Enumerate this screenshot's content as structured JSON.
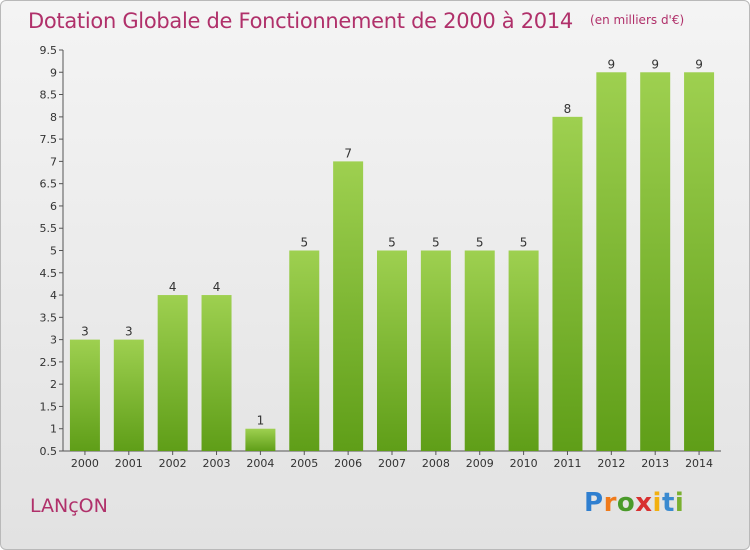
{
  "header": {
    "title": "Dotation Globale de Fonctionnement de 2000 à 2014",
    "unit_note": "(en milliers d'€)"
  },
  "place_name": "LANçON",
  "logo": {
    "text": "Proxiti",
    "letters": [
      "P",
      "r",
      "o",
      "x",
      "i",
      "t",
      "i"
    ],
    "letter_colors": [
      "#2f7fd0",
      "#f07a1a",
      "#4a9a2a",
      "#d83030",
      "#f2b010",
      "#3a8ad0",
      "#7ab030"
    ]
  },
  "colors": {
    "bar_top": "#9ed050",
    "bar_bottom": "#5f9e18",
    "title": "#b0306a",
    "axis_text": "#333333"
  },
  "chart_data": {
    "type": "bar",
    "title": "Dotation Globale de Fonctionnement de 2000 à 2014",
    "subtitle": "(en milliers d'€)",
    "xlabel": "",
    "ylabel": "",
    "categories": [
      "2000",
      "2001",
      "2002",
      "2003",
      "2004",
      "2005",
      "2006",
      "2007",
      "2008",
      "2009",
      "2010",
      "2011",
      "2012",
      "2013",
      "2014"
    ],
    "values": [
      3,
      3,
      4,
      4,
      1,
      5,
      7,
      5,
      5,
      5,
      5,
      8,
      9,
      9,
      9
    ],
    "data_labels": [
      "3",
      "3",
      "4",
      "4",
      "1",
      "5",
      "7",
      "5",
      "5",
      "5",
      "5",
      "8",
      "9",
      "9",
      "9"
    ],
    "ylim": [
      0.5,
      9.5
    ],
    "yticks": [
      0.5,
      1,
      1.5,
      2,
      2.5,
      3,
      3.5,
      4,
      4.5,
      5,
      5.5,
      6,
      6.5,
      7,
      7.5,
      8,
      8.5,
      9,
      9.5
    ],
    "ytick_labels": [
      "0.5",
      "1",
      "1.5",
      "2",
      "2.5",
      "3",
      "3.5",
      "4",
      "4.5",
      "5",
      "5.5",
      "6",
      "6.5",
      "7",
      "7.5",
      "8",
      "8.5",
      "9",
      "9.5"
    ],
    "grid": false,
    "legend": "none"
  }
}
